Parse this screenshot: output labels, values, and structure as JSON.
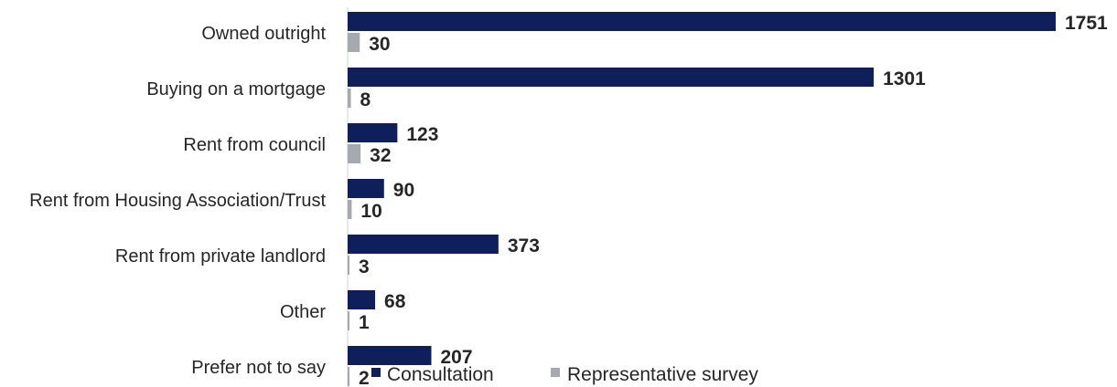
{
  "chart_data": {
    "type": "bar",
    "orientation": "horizontal",
    "categories": [
      "Owned outright",
      "Buying on a mortgage",
      "Rent from council",
      "Rent from Housing Association/Trust",
      "Rent from private landlord",
      "Other",
      "Prefer not to say"
    ],
    "series": [
      {
        "name": "Consultation",
        "color": "#0e1f5b",
        "values": [
          1751,
          1301,
          123,
          90,
          373,
          68,
          207
        ]
      },
      {
        "name": "Representative survey",
        "color": "#a6a9b0",
        "values": [
          30,
          8,
          32,
          10,
          3,
          1,
          2
        ]
      }
    ],
    "xlim": [
      0,
      1751
    ],
    "grid": false,
    "data_labels": true,
    "legend": {
      "position": "bottom"
    }
  }
}
